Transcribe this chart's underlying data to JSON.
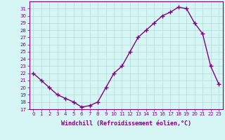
{
  "x": [
    0,
    1,
    2,
    3,
    4,
    5,
    6,
    7,
    8,
    9,
    10,
    11,
    12,
    13,
    14,
    15,
    16,
    17,
    18,
    19,
    20,
    21,
    22,
    23
  ],
  "y": [
    22,
    21,
    20,
    19,
    18.5,
    18,
    17.3,
    17.5,
    18,
    20,
    22,
    23,
    25,
    27,
    28,
    29,
    30,
    30.5,
    31.2,
    31,
    29,
    27.5,
    23,
    20.5
  ],
  "line_color": "#800080",
  "marker": "+",
  "marker_size": 4,
  "bg_color": "#d6f5f5",
  "grid_color": "#b8d8d8",
  "xlabel": "Windchill (Refroidissement éolien,°C)",
  "xlabel_fontsize": 6.0,
  "ylim": [
    17,
    32
  ],
  "xlim": [
    -0.5,
    23.5
  ],
  "yticks": [
    17,
    18,
    19,
    20,
    21,
    22,
    23,
    24,
    25,
    26,
    27,
    28,
    29,
    30,
    31
  ],
  "xticks": [
    0,
    1,
    2,
    3,
    4,
    5,
    6,
    7,
    8,
    9,
    10,
    11,
    12,
    13,
    14,
    15,
    16,
    17,
    18,
    19,
    20,
    21,
    22,
    23
  ],
  "tick_fontsize": 5.0,
  "line_width": 1.0
}
